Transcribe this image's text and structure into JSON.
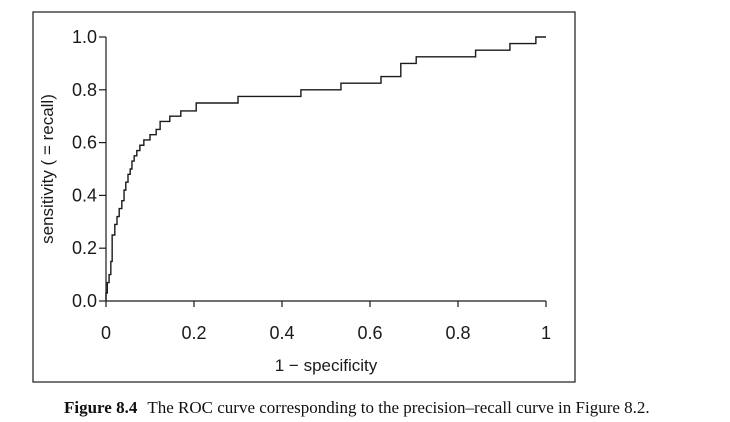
{
  "chart_data": {
    "type": "line",
    "title": "",
    "xlabel": "1 − specificity",
    "ylabel": "sensitivity ( = recall)",
    "xlim": [
      0,
      1
    ],
    "ylim": [
      0,
      1
    ],
    "x_ticks": [
      0,
      0.2,
      0.4,
      0.6,
      0.8,
      1
    ],
    "x_tick_labels": [
      "0",
      "0.2",
      "0.4",
      "0.6",
      "0.8",
      "1"
    ],
    "y_ticks": [
      0,
      0.2,
      0.4,
      0.6,
      0.8,
      1.0
    ],
    "y_tick_labels": [
      "0.0",
      "0.2",
      "0.4",
      "0.6",
      "0.8",
      "1.0"
    ],
    "grid": false,
    "legend": "none",
    "series": [
      {
        "line_color": "#1a1a1a",
        "step": true,
        "points": [
          [
            0,
            0
          ],
          [
            0,
            0.03
          ],
          [
            0.003,
            0.03
          ],
          [
            0.003,
            0.07
          ],
          [
            0.007,
            0.07
          ],
          [
            0.007,
            0.1
          ],
          [
            0.011,
            0.1
          ],
          [
            0.011,
            0.15
          ],
          [
            0.014,
            0.15
          ],
          [
            0.014,
            0.25
          ],
          [
            0.02,
            0.25
          ],
          [
            0.02,
            0.29
          ],
          [
            0.025,
            0.29
          ],
          [
            0.025,
            0.32
          ],
          [
            0.03,
            0.32
          ],
          [
            0.03,
            0.35
          ],
          [
            0.036,
            0.35
          ],
          [
            0.036,
            0.38
          ],
          [
            0.041,
            0.38
          ],
          [
            0.041,
            0.42
          ],
          [
            0.045,
            0.42
          ],
          [
            0.045,
            0.45
          ],
          [
            0.05,
            0.45
          ],
          [
            0.05,
            0.48
          ],
          [
            0.055,
            0.48
          ],
          [
            0.055,
            0.5
          ],
          [
            0.059,
            0.5
          ],
          [
            0.059,
            0.53
          ],
          [
            0.064,
            0.53
          ],
          [
            0.064,
            0.55
          ],
          [
            0.07,
            0.55
          ],
          [
            0.07,
            0.57
          ],
          [
            0.077,
            0.57
          ],
          [
            0.077,
            0.59
          ],
          [
            0.086,
            0.59
          ],
          [
            0.086,
            0.61
          ],
          [
            0.1,
            0.61
          ],
          [
            0.1,
            0.63
          ],
          [
            0.114,
            0.63
          ],
          [
            0.114,
            0.65
          ],
          [
            0.123,
            0.65
          ],
          [
            0.123,
            0.68
          ],
          [
            0.145,
            0.68
          ],
          [
            0.145,
            0.7
          ],
          [
            0.17,
            0.7
          ],
          [
            0.17,
            0.72
          ],
          [
            0.205,
            0.72
          ],
          [
            0.205,
            0.75
          ],
          [
            0.3,
            0.75
          ],
          [
            0.3,
            0.775
          ],
          [
            0.443,
            0.775
          ],
          [
            0.443,
            0.8
          ],
          [
            0.534,
            0.8
          ],
          [
            0.534,
            0.825
          ],
          [
            0.625,
            0.825
          ],
          [
            0.625,
            0.85
          ],
          [
            0.67,
            0.85
          ],
          [
            0.67,
            0.9
          ],
          [
            0.705,
            0.9
          ],
          [
            0.705,
            0.925
          ],
          [
            0.84,
            0.925
          ],
          [
            0.84,
            0.95
          ],
          [
            0.918,
            0.95
          ],
          [
            0.918,
            0.975
          ],
          [
            0.977,
            0.975
          ],
          [
            0.977,
            1.0
          ],
          [
            1.0,
            1.0
          ]
        ]
      }
    ]
  },
  "caption": {
    "label": "Figure 8.4",
    "text": "The ROC curve corresponding to the precision–recall curve in Figure 8.2."
  }
}
